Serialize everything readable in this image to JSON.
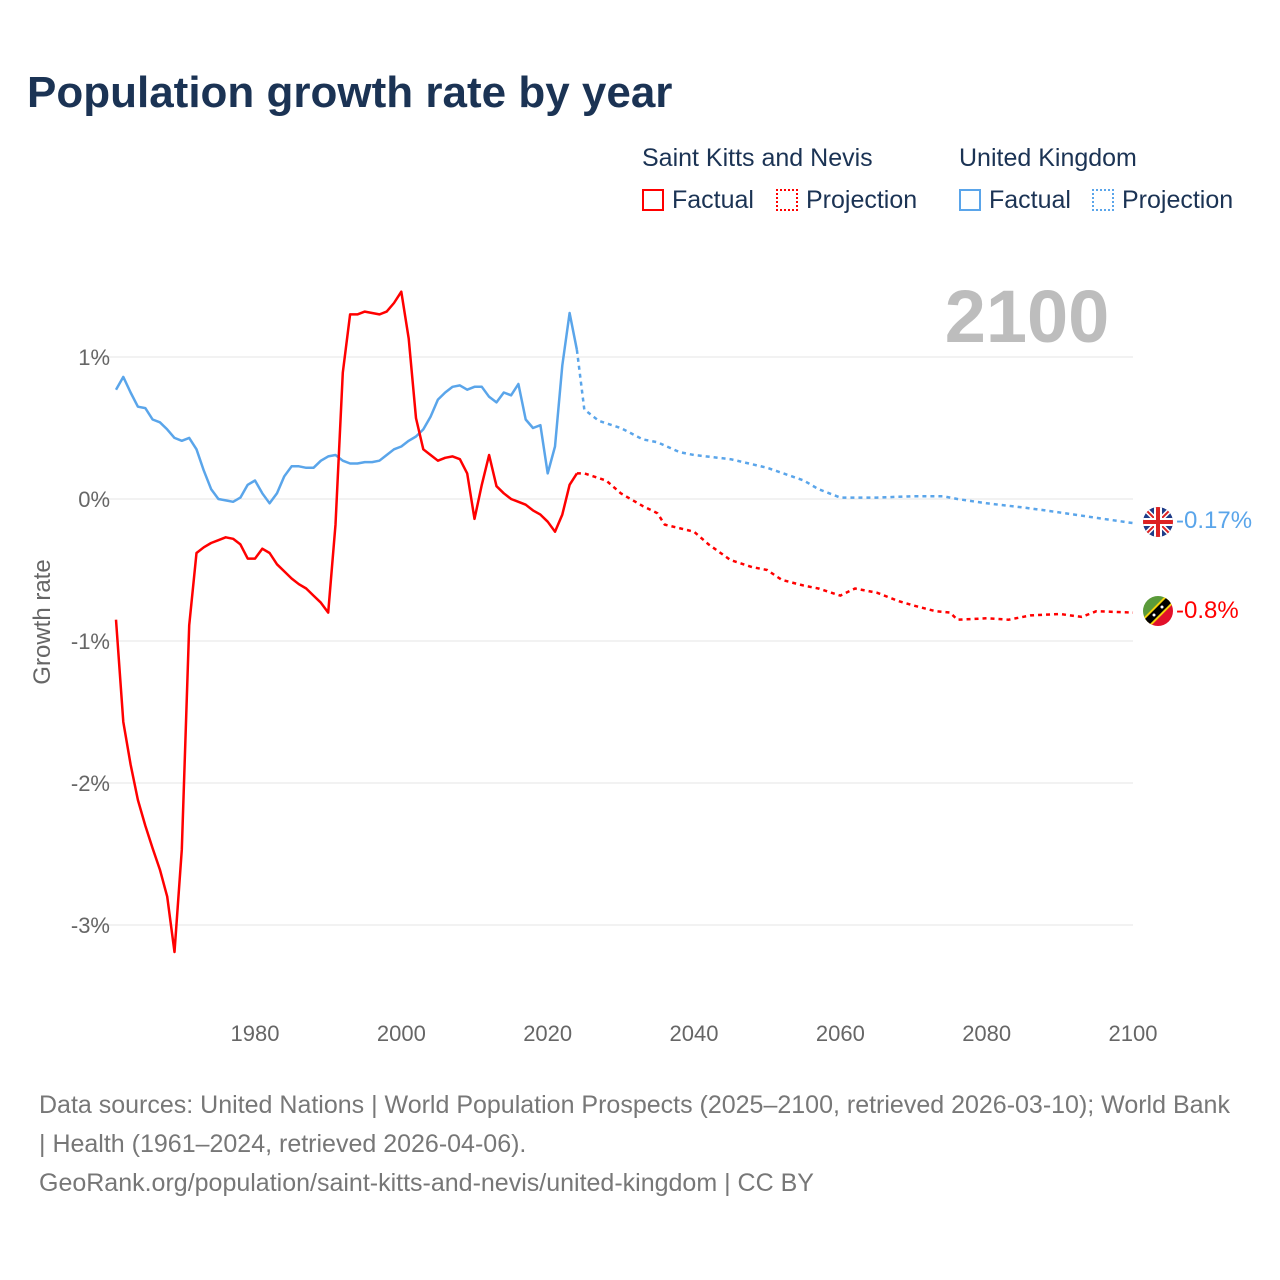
{
  "title": "Population growth rate by year",
  "legend": {
    "groups": [
      {
        "name": "Saint Kitts and Nevis",
        "factual": "Factual",
        "projection": "Projection",
        "color": "#ff0000"
      },
      {
        "name": "United Kingdom",
        "factual": "Factual",
        "projection": "Projection",
        "color": "#5aa5ea"
      }
    ]
  },
  "year_label": "2100",
  "end_labels": {
    "uk": "-0.17%",
    "skn": "-0.8%"
  },
  "footer": {
    "line1": "Data sources: United Nations | World Population Prospects (2025–2100, retrieved 2026-03-10); World Bank | Health (1961–2024, retrieved 2026-04-06).",
    "line2": "GeoRank.org/population/saint-kitts-and-nevis/united-kingdom | CC BY"
  },
  "chart_data": {
    "type": "line",
    "ylabel": "Growth rate",
    "xlim": [
      1961,
      2100
    ],
    "ylim": [
      -3.5,
      1.6
    ],
    "yticks": [
      {
        "v": 1,
        "label": "1%"
      },
      {
        "v": 0,
        "label": "0%"
      },
      {
        "v": -1,
        "label": "-1%"
      },
      {
        "v": -2,
        "label": "-2%"
      },
      {
        "v": -3,
        "label": "-3%"
      }
    ],
    "xticks": [
      1980,
      2000,
      2020,
      2040,
      2060,
      2080,
      2100
    ],
    "series": [
      {
        "name": "United Kingdom Factual",
        "color": "#5aa5ea",
        "dashed": false,
        "start": 1961,
        "values": [
          0.77,
          0.86,
          0.75,
          0.65,
          0.64,
          0.56,
          0.54,
          0.49,
          0.43,
          0.41,
          0.43,
          0.35,
          0.2,
          0.07,
          0.0,
          -0.01,
          -0.02,
          0.01,
          0.1,
          0.13,
          0.04,
          -0.03,
          0.04,
          0.16,
          0.23,
          0.23,
          0.22,
          0.22,
          0.27,
          0.3,
          0.31,
          0.27,
          0.25,
          0.25,
          0.26,
          0.26,
          0.27,
          0.31,
          0.35,
          0.37,
          0.41,
          0.44,
          0.49,
          0.58,
          0.7,
          0.75,
          0.79,
          0.8,
          0.77,
          0.79,
          0.79,
          0.72,
          0.68,
          0.75,
          0.73,
          0.81,
          0.56,
          0.5,
          0.52,
          0.18,
          0.37,
          0.94,
          1.31,
          1.05
        ]
      },
      {
        "name": "United Kingdom Projection",
        "color": "#5aa5ea",
        "dashed": true,
        "points": [
          [
            2024,
            1.05
          ],
          [
            2025,
            0.63
          ],
          [
            2027,
            0.55
          ],
          [
            2030,
            0.5
          ],
          [
            2033,
            0.42
          ],
          [
            2035,
            0.4
          ],
          [
            2038,
            0.33
          ],
          [
            2040,
            0.31
          ],
          [
            2045,
            0.28
          ],
          [
            2050,
            0.22
          ],
          [
            2055,
            0.13
          ],
          [
            2057,
            0.07
          ],
          [
            2060,
            0.01
          ],
          [
            2065,
            0.01
          ],
          [
            2070,
            0.02
          ],
          [
            2074,
            0.02
          ],
          [
            2076,
            0.0
          ],
          [
            2080,
            -0.03
          ],
          [
            2085,
            -0.06
          ],
          [
            2088,
            -0.08
          ],
          [
            2092,
            -0.11
          ],
          [
            2096,
            -0.14
          ],
          [
            2100,
            -0.17
          ]
        ]
      },
      {
        "name": "Saint Kitts and Nevis Factual",
        "color": "#ff0000",
        "dashed": false,
        "start": 1961,
        "values": [
          -0.85,
          -1.57,
          -1.87,
          -2.12,
          -2.3,
          -2.46,
          -2.61,
          -2.8,
          -3.19,
          -2.47,
          -0.89,
          -0.38,
          -0.34,
          -0.31,
          -0.29,
          -0.27,
          -0.28,
          -0.32,
          -0.42,
          -0.42,
          -0.35,
          -0.38,
          -0.46,
          -0.51,
          -0.56,
          -0.6,
          -0.63,
          -0.68,
          -0.73,
          -0.8,
          -0.18,
          0.89,
          1.3,
          1.3,
          1.32,
          1.31,
          1.3,
          1.32,
          1.38,
          1.46,
          1.13,
          0.57,
          0.35,
          0.31,
          0.27,
          0.29,
          0.3,
          0.28,
          0.18,
          -0.14,
          0.1,
          0.31,
          0.09,
          0.04,
          0.0,
          -0.02,
          -0.04,
          -0.08,
          -0.11,
          -0.16,
          -0.23,
          -0.11,
          0.1,
          0.18
        ]
      },
      {
        "name": "Saint Kitts and Nevis Projection",
        "color": "#ff0000",
        "dashed": true,
        "points": [
          [
            2024,
            0.18
          ],
          [
            2025,
            0.18
          ],
          [
            2028,
            0.13
          ],
          [
            2030,
            0.04
          ],
          [
            2033,
            -0.05
          ],
          [
            2035,
            -0.1
          ],
          [
            2036,
            -0.18
          ],
          [
            2040,
            -0.23
          ],
          [
            2042,
            -0.32
          ],
          [
            2045,
            -0.43
          ],
          [
            2048,
            -0.48
          ],
          [
            2050,
            -0.5
          ],
          [
            2052,
            -0.57
          ],
          [
            2055,
            -0.61
          ],
          [
            2057,
            -0.63
          ],
          [
            2060,
            -0.68
          ],
          [
            2062,
            -0.63
          ],
          [
            2065,
            -0.66
          ],
          [
            2068,
            -0.72
          ],
          [
            2070,
            -0.75
          ],
          [
            2073,
            -0.79
          ],
          [
            2075,
            -0.8
          ],
          [
            2076,
            -0.85
          ],
          [
            2080,
            -0.84
          ],
          [
            2083,
            -0.85
          ],
          [
            2086,
            -0.82
          ],
          [
            2090,
            -0.81
          ],
          [
            2093,
            -0.83
          ],
          [
            2095,
            -0.79
          ],
          [
            2100,
            -0.8
          ]
        ]
      }
    ]
  }
}
